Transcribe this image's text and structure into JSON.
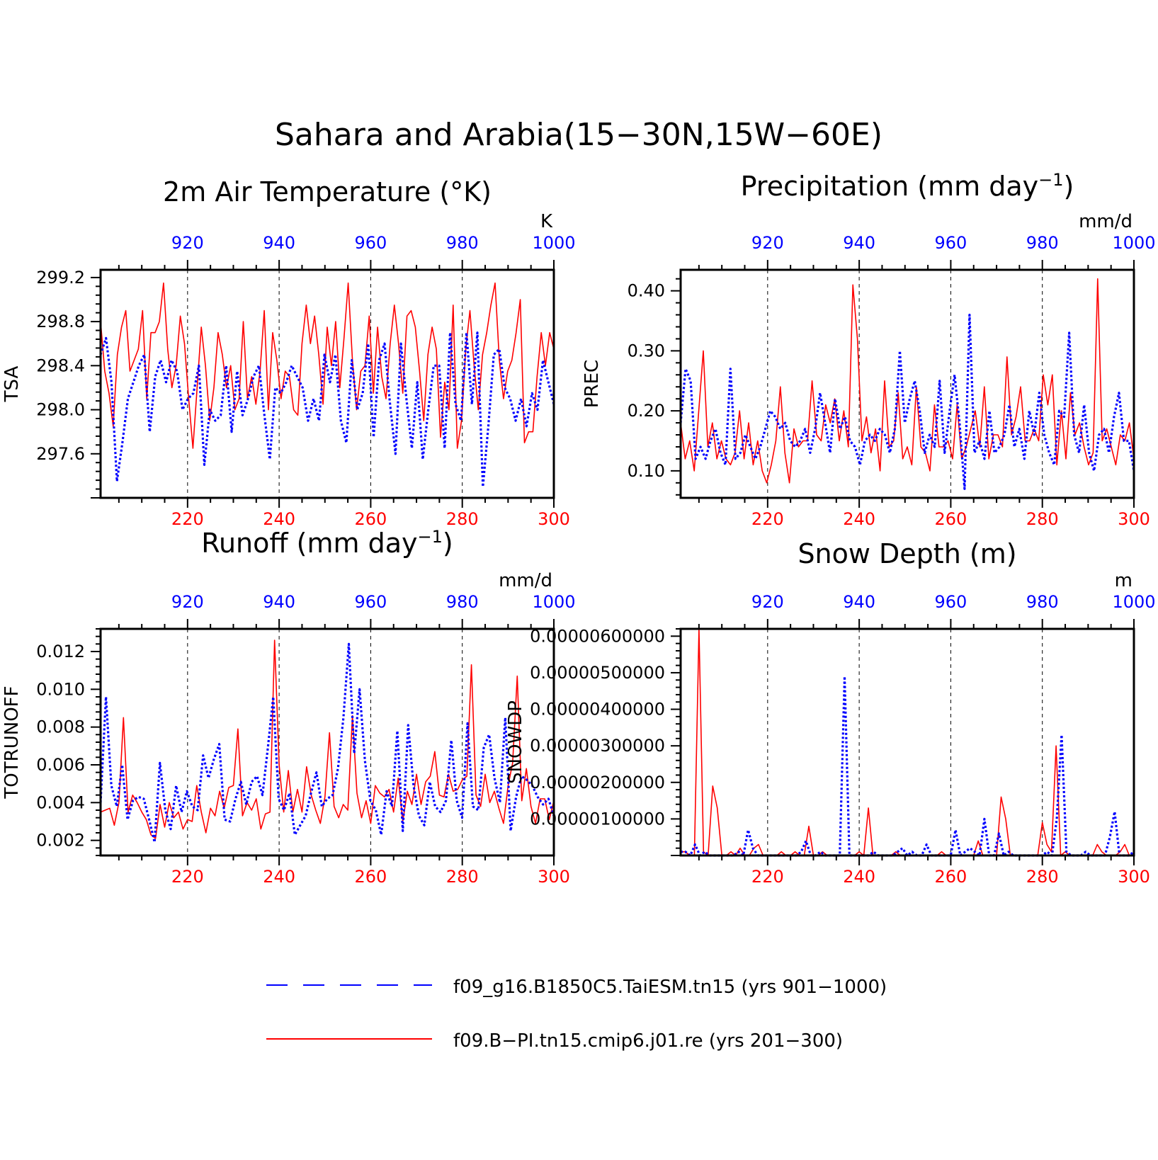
{
  "figure": {
    "title": "Sahara and Arabia(15−30N,15W−60E)",
    "colors": {
      "red_series": "#ff0000",
      "blue_series": "#0000ff",
      "frame": "#000000",
      "grid": "#000000"
    }
  },
  "legend": {
    "placement": "bottom-center",
    "items": [
      {
        "label": "f09_g16.B1850C5.TaiESM.tn15 (yrs 901−1000)",
        "color": "#0000ff",
        "style": "dashed"
      },
      {
        "label": "f09.B−PI.tn15.cmip6.j01.re (yrs 201−300)",
        "color": "#ff0000",
        "style": "solid"
      }
    ]
  },
  "chart_data": [
    {
      "type": "line",
      "title_main": "2m Air Temperature (°K)",
      "title_sup": "",
      "title_tail": "",
      "ylabel": "TSA",
      "units": "K",
      "ylim": [
        297.2,
        299.27
      ],
      "yticks": [
        297.6,
        298.0,
        298.4,
        298.8,
        299.2
      ],
      "ytick_labels": [
        "297.6",
        "298.0",
        "298.4",
        "298.8",
        "299.2"
      ],
      "xlim_bottom": [
        201,
        300
      ],
      "xticks_bottom": [
        220,
        240,
        260,
        280,
        300
      ],
      "xlim_top": [
        901,
        1000
      ],
      "xticks_top": [
        920,
        940,
        960,
        980,
        1000
      ],
      "grid": "dashed vertical at major x ticks",
      "series": [
        {
          "name": "f09.B−PI.tn15.cmip6.j01.re (yrs 201−300)",
          "axis": "bottom",
          "style": "solid",
          "values": [
            298.8,
            298.35,
            298.15,
            297.85,
            298.5,
            298.75,
            298.9,
            298.35,
            298.45,
            298.55,
            298.9,
            298.1,
            298.7,
            298.7,
            298.8,
            299.15,
            298.55,
            298.2,
            298.4,
            298.85,
            298.6,
            298.1,
            297.65,
            298.2,
            298.75,
            298.4,
            297.9,
            298.2,
            298.7,
            298.5,
            298.2,
            298.4,
            298.0,
            298.1,
            298.8,
            298.1,
            298.3,
            298.05,
            298.35,
            298.9,
            298.0,
            298.7,
            298.45,
            298.1,
            298.35,
            298.3,
            298.0,
            297.95,
            298.6,
            298.95,
            298.6,
            298.85,
            298.5,
            298.05,
            298.75,
            298.4,
            298.8,
            298.2,
            298.65,
            299.15,
            298.45,
            298.0,
            298.35,
            298.4,
            298.85,
            298.15,
            298.75,
            298.3,
            298.1,
            298.6,
            298.95,
            298.6,
            298.15,
            298.85,
            298.9,
            298.75,
            298.35,
            297.9,
            298.5,
            298.75,
            298.55,
            297.75,
            298.25,
            298.0,
            298.95,
            297.65,
            297.9,
            298.55,
            298.9,
            298.4,
            298.0,
            298.5,
            298.7,
            298.95,
            299.15,
            298.45,
            298.1,
            298.35,
            298.45,
            298.7,
            299.0,
            297.7,
            297.8,
            297.8,
            298.3,
            298.7,
            298.4,
            298.7,
            298.55
          ]
        },
        {
          "name": "f09_g16.B1850C5.TaiESM.tn15 (yrs 901−1000)",
          "axis": "top",
          "style": "dashed",
          "values": [
            298.5,
            298.65,
            298.25,
            297.35,
            297.7,
            298.1,
            298.25,
            298.4,
            298.5,
            297.8,
            298.3,
            298.45,
            298.25,
            298.45,
            298.35,
            298.0,
            298.1,
            298.15,
            298.4,
            297.5,
            298.0,
            297.9,
            297.95,
            298.4,
            297.8,
            298.35,
            297.95,
            298.1,
            298.3,
            298.4,
            297.95,
            297.55,
            298.2,
            298.15,
            298.25,
            298.4,
            298.3,
            298.2,
            297.9,
            298.1,
            297.9,
            298.5,
            298.25,
            298.5,
            297.9,
            297.7,
            298.45,
            298.0,
            298.15,
            298.6,
            297.75,
            298.45,
            298.6,
            298.05,
            297.6,
            298.6,
            298.1,
            297.65,
            298.25,
            297.55,
            298.0,
            298.4,
            298.4,
            297.65,
            298.7,
            298.05,
            297.9,
            298.7,
            298.05,
            298.7,
            297.3,
            297.85,
            298.5,
            298.55,
            298.2,
            298.1,
            297.9,
            298.1,
            297.85,
            298.15,
            298.0,
            298.45,
            298.25,
            298.05
          ]
        }
      ]
    },
    {
      "type": "line",
      "title_main": "Precipitation (mm day",
      "title_sup": "−1",
      "title_tail": ")",
      "ylabel": "PREC",
      "units": "mm/d",
      "ylim": [
        0.055,
        0.435
      ],
      "yticks": [
        0.1,
        0.2,
        0.3,
        0.4
      ],
      "ytick_labels": [
        "0.10",
        "0.20",
        "0.30",
        "0.40"
      ],
      "xlim_bottom": [
        201,
        300
      ],
      "xticks_bottom": [
        220,
        240,
        260,
        280,
        300
      ],
      "xlim_top": [
        901,
        1000
      ],
      "xticks_top": [
        920,
        940,
        960,
        980,
        1000
      ],
      "grid": "dashed vertical at major x ticks",
      "series": [
        {
          "name": "f09.B−PI.tn15.cmip6.j01.re (yrs 201−300)",
          "axis": "bottom",
          "style": "solid",
          "values": [
            0.18,
            0.12,
            0.15,
            0.1,
            0.2,
            0.3,
            0.14,
            0.18,
            0.12,
            0.15,
            0.12,
            0.11,
            0.13,
            0.2,
            0.12,
            0.18,
            0.11,
            0.15,
            0.1,
            0.08,
            0.11,
            0.15,
            0.24,
            0.13,
            0.08,
            0.17,
            0.14,
            0.15,
            0.15,
            0.25,
            0.16,
            0.15,
            0.21,
            0.18,
            0.22,
            0.15,
            0.2,
            0.14,
            0.41,
            0.32,
            0.15,
            0.19,
            0.13,
            0.17,
            0.1,
            0.25,
            0.14,
            0.15,
            0.23,
            0.12,
            0.14,
            0.11,
            0.24,
            0.14,
            0.13,
            0.1,
            0.21,
            0.14,
            0.14,
            0.15,
            0.12,
            0.21,
            0.12,
            0.14,
            0.17,
            0.2,
            0.14,
            0.24,
            0.12,
            0.16,
            0.16,
            0.14,
            0.29,
            0.16,
            0.19,
            0.24,
            0.15,
            0.15,
            0.17,
            0.15,
            0.26,
            0.21,
            0.26,
            0.11,
            0.2,
            0.12,
            0.23,
            0.16,
            0.18,
            0.14,
            0.11,
            0.13,
            0.42,
            0.15,
            0.17,
            0.14,
            0.11,
            0.16,
            0.15,
            0.18,
            0.12
          ]
        },
        {
          "name": "f09_g16.B1850C5.TaiESM.tn15 (yrs 901−1000)",
          "axis": "top",
          "style": "dashed",
          "values": [
            0.18,
            0.27,
            0.25,
            0.12,
            0.14,
            0.12,
            0.15,
            0.17,
            0.13,
            0.11,
            0.27,
            0.12,
            0.13,
            0.16,
            0.14,
            0.12,
            0.14,
            0.17,
            0.2,
            0.19,
            0.17,
            0.18,
            0.15,
            0.14,
            0.15,
            0.17,
            0.13,
            0.17,
            0.23,
            0.18,
            0.13,
            0.22,
            0.17,
            0.19,
            0.15,
            0.14,
            0.11,
            0.15,
            0.16,
            0.15,
            0.17,
            0.16,
            0.13,
            0.17,
            0.3,
            0.18,
            0.22,
            0.25,
            0.2,
            0.13,
            0.16,
            0.14,
            0.25,
            0.13,
            0.2,
            0.26,
            0.18,
            0.07,
            0.36,
            0.13,
            0.15,
            0.12,
            0.2,
            0.13,
            0.14,
            0.16,
            0.21,
            0.14,
            0.17,
            0.12,
            0.2,
            0.16,
            0.23,
            0.16,
            0.13,
            0.11,
            0.2,
            0.19,
            0.33,
            0.16,
            0.13,
            0.21,
            0.13,
            0.1,
            0.16,
            0.17,
            0.13,
            0.19,
            0.23,
            0.15,
            0.15,
            0.1
          ]
        }
      ]
    },
    {
      "type": "line",
      "title_main": "Runoff (mm day",
      "title_sup": "−1",
      "title_tail": ")",
      "ylabel": "TOTRUNOFF",
      "units": "mm/d",
      "ylim": [
        0.0012,
        0.0132
      ],
      "yticks": [
        0.002,
        0.004,
        0.006,
        0.008,
        0.01,
        0.012
      ],
      "ytick_labels": [
        "0.002",
        "0.004",
        "0.006",
        "0.008",
        "0.010",
        "0.012"
      ],
      "xlim_bottom": [
        201,
        300
      ],
      "xticks_bottom": [
        220,
        240,
        260,
        280,
        300
      ],
      "xlim_top": [
        901,
        1000
      ],
      "xticks_top": [
        920,
        940,
        960,
        980,
        1000
      ],
      "grid": "dashed vertical at major x ticks",
      "series": [
        {
          "name": "f09.B−PI.tn15.cmip6.j01.re (yrs 201−300)",
          "axis": "bottom",
          "style": "solid",
          "values": [
            0.0035,
            0.0036,
            0.0037,
            0.0028,
            0.004,
            0.0085,
            0.0035,
            0.0044,
            0.004,
            0.0035,
            0.0031,
            0.0023,
            0.0021,
            0.0039,
            0.0027,
            0.004,
            0.0032,
            0.0035,
            0.0026,
            0.0031,
            0.003,
            0.0049,
            0.0035,
            0.0024,
            0.0037,
            0.0033,
            0.0046,
            0.0037,
            0.0048,
            0.0049,
            0.0079,
            0.0033,
            0.004,
            0.0036,
            0.0042,
            0.0026,
            0.0034,
            0.0035,
            0.0126,
            0.006,
            0.0035,
            0.0057,
            0.0035,
            0.0047,
            0.0035,
            0.0059,
            0.0044,
            0.0036,
            0.0029,
            0.0043,
            0.0077,
            0.0038,
            0.0032,
            0.0039,
            0.0036,
            0.0086,
            0.0045,
            0.0032,
            0.0041,
            0.0029,
            0.0049,
            0.0045,
            0.0043,
            0.0047,
            0.0035,
            0.0053,
            0.003,
            0.0046,
            0.0039,
            0.0055,
            0.0039,
            0.0051,
            0.0054,
            0.0067,
            0.0044,
            0.0043,
            0.0055,
            0.0046,
            0.0047,
            0.0052,
            0.0054,
            0.0113,
            0.0044,
            0.0038,
            0.0055,
            0.004,
            0.0046,
            0.0037,
            0.0029,
            0.0049,
            0.0061,
            0.0107,
            0.0041,
            0.0058,
            0.0038,
            0.0029,
            0.0042,
            0.0042,
            0.0031,
            0.0041
          ]
        },
        {
          "name": "f09_g16.B1850C5.TaiESM.tn15 (yrs 901−1000)",
          "axis": "top",
          "style": "dashed",
          "values": [
            0.004,
            0.0096,
            0.0049,
            0.0038,
            0.006,
            0.0031,
            0.0041,
            0.0043,
            0.0042,
            0.0031,
            0.0019,
            0.0061,
            0.0036,
            0.0026,
            0.0049,
            0.0035,
            0.0046,
            0.0038,
            0.0036,
            0.0065,
            0.0053,
            0.0063,
            0.0071,
            0.0031,
            0.003,
            0.0042,
            0.0051,
            0.0039,
            0.0051,
            0.0054,
            0.0044,
            0.0069,
            0.0096,
            0.0042,
            0.0036,
            0.0045,
            0.0023,
            0.0028,
            0.0033,
            0.0045,
            0.0056,
            0.0038,
            0.0042,
            0.0044,
            0.0058,
            0.0085,
            0.0124,
            0.0066,
            0.01,
            0.0062,
            0.0041,
            0.0036,
            0.0023,
            0.0046,
            0.0038,
            0.0078,
            0.0025,
            0.0081,
            0.0049,
            0.0033,
            0.0028,
            0.0051,
            0.0038,
            0.0035,
            0.0041,
            0.0073,
            0.0041,
            0.0032,
            0.0082,
            0.0038,
            0.0036,
            0.0069,
            0.0076,
            0.0053,
            0.004,
            0.0085,
            0.0025,
            0.0043,
            0.0054,
            0.0052,
            0.0049,
            0.0043,
            0.0039,
            0.0042,
            0.0033
          ]
        }
      ]
    },
    {
      "type": "line",
      "title_main": "Snow Depth (m)",
      "title_sup": "",
      "title_tail": "",
      "ylabel": "SNOWDP",
      "units": "m",
      "ylim": [
        0,
        6.2e-06
      ],
      "yticks": [
        1e-06,
        2e-06,
        3e-06,
        4e-06,
        5e-06,
        6e-06
      ],
      "ytick_labels": [
        "0.00000100000",
        "0.00000200000",
        "0.00000300000",
        "0.00000400000",
        "0.00000500000",
        "0.00000600000"
      ],
      "xlim_bottom": [
        201,
        300
      ],
      "xticks_bottom": [
        220,
        240,
        260,
        280,
        300
      ],
      "xlim_top": [
        901,
        1000
      ],
      "xticks_top": [
        920,
        940,
        960,
        980,
        1000
      ],
      "grid": "dashed vertical at major x ticks",
      "series": [
        {
          "name": "f09.B−PI.tn15.cmip6.j01.re (yrs 201−300)",
          "axis": "bottom",
          "style": "solid",
          "values": [
            1e-07,
            1e-07,
            0,
            0,
            6.2e-06,
            1e-07,
            0,
            1.9e-06,
            1.3e-06,
            0,
            0,
            1e-07,
            0,
            2e-07,
            0,
            0,
            2e-07,
            3e-07,
            0,
            0,
            0,
            0,
            1e-07,
            0,
            0,
            1e-07,
            0,
            0,
            8e-07,
            0,
            0,
            1e-07,
            0,
            0,
            0,
            0,
            0,
            0,
            0,
            1e-07,
            0,
            1.3e-06,
            0,
            0,
            0,
            0,
            0,
            1e-07,
            0,
            0,
            0,
            0,
            0,
            0,
            0,
            0,
            0,
            1e-07,
            0,
            0,
            0,
            0,
            0,
            0,
            0,
            4e-07,
            0,
            0,
            0,
            0,
            1.6e-06,
            1e-06,
            0,
            0,
            0,
            0,
            0,
            0,
            0,
            9e-07,
            3e-07,
            1e-07,
            3e-06,
            0,
            1e-07,
            0,
            0,
            0,
            0,
            0,
            0,
            3e-07,
            1e-07,
            0,
            0,
            0,
            1e-07,
            3e-07,
            0,
            0
          ]
        },
        {
          "name": "f09_g16.B1850C5.TaiESM.tn15 (yrs 901−1000)",
          "axis": "top",
          "style": "dashed",
          "values": [
            1e-07,
            1e-07,
            0,
            3e-07,
            0,
            1e-07,
            0,
            0,
            0,
            0,
            0,
            0,
            1e-07,
            0,
            7e-07,
            2e-07,
            0,
            0,
            0,
            0,
            0,
            0,
            0,
            0,
            0,
            1e-07,
            4e-07,
            0,
            0,
            1e-07,
            0,
            0,
            0,
            0,
            4.9e-06,
            0,
            0,
            0,
            0,
            0,
            1e-07,
            0,
            0,
            0,
            0,
            1e-07,
            2e-07,
            0,
            1e-07,
            0,
            0,
            3e-07,
            0,
            0,
            0,
            0,
            0,
            7e-07,
            0,
            1e-07,
            2e-07,
            1e-07,
            0,
            1e-06,
            0,
            0,
            6e-07,
            0,
            1e-07,
            0,
            0,
            0,
            0,
            0,
            0,
            0,
            1e-07,
            0,
            1e-06,
            3.3e-06,
            1e-07,
            0,
            0,
            0,
            1e-07,
            0,
            0,
            0,
            0,
            5e-07,
            1.2e-06,
            0,
            0,
            0,
            1e-07
          ]
        }
      ]
    }
  ]
}
